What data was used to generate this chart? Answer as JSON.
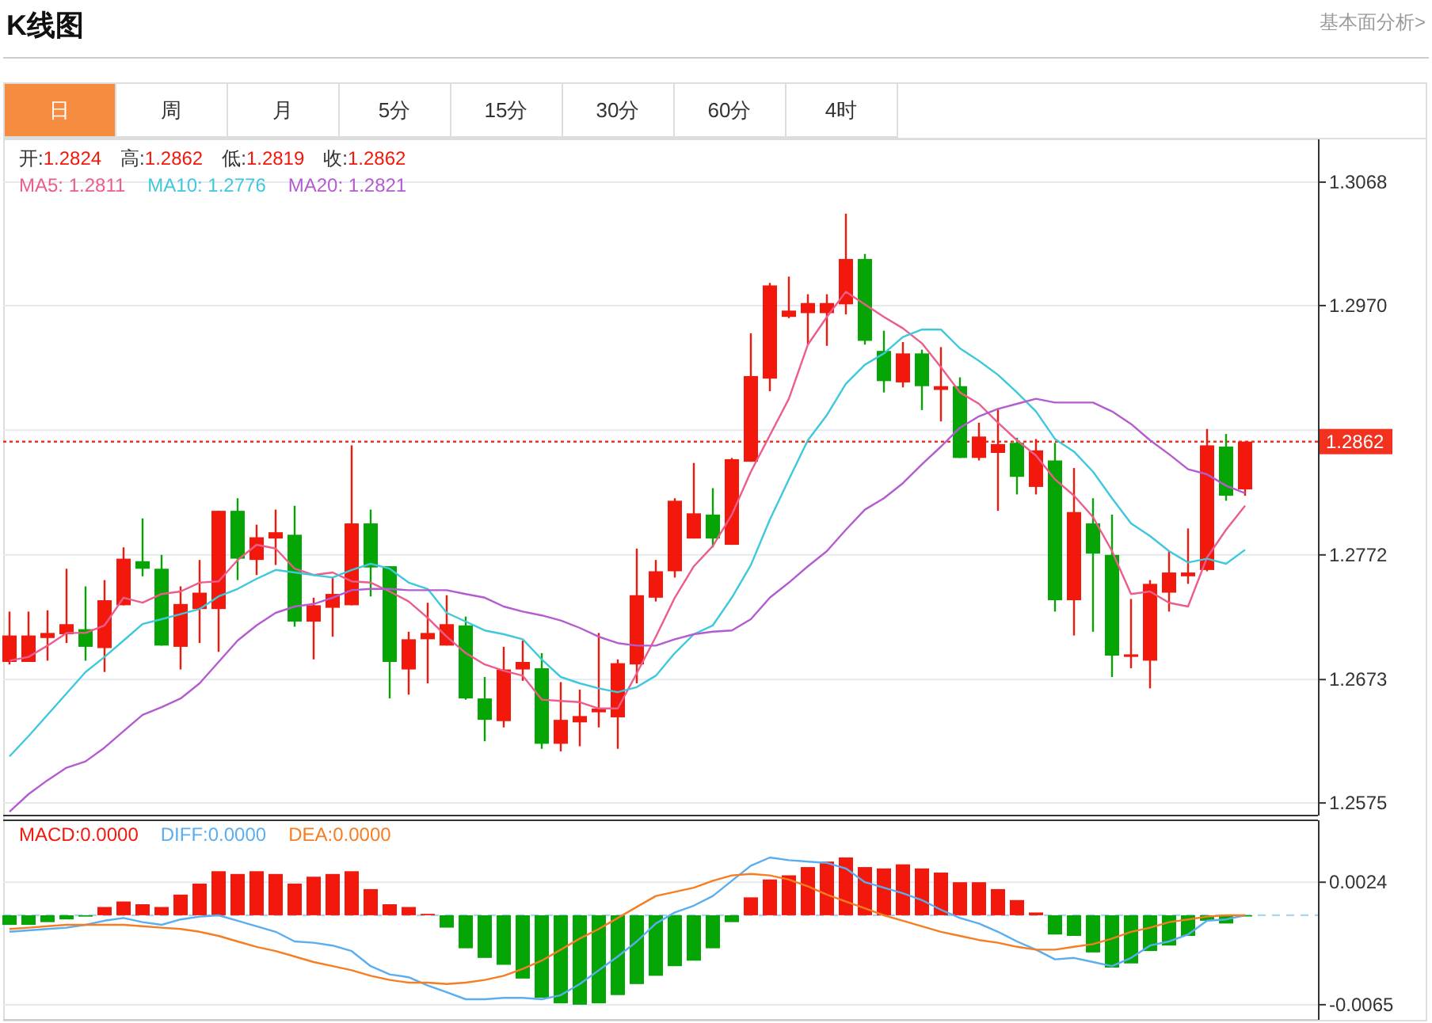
{
  "chart_data": [
    {
      "type": "candlestick",
      "title": "K线图",
      "categories": [
        null,
        null,
        null,
        null,
        null,
        null,
        null,
        null,
        null,
        null,
        null,
        null,
        null,
        null,
        null,
        null,
        null,
        null,
        null,
        null,
        null,
        null,
        null,
        null,
        null,
        null,
        null,
        null,
        null,
        null,
        null,
        null,
        null,
        null,
        null,
        null,
        null,
        null,
        null,
        null,
        null,
        null,
        null,
        null,
        null,
        null,
        null,
        null,
        null,
        null,
        null,
        null,
        null,
        null,
        null,
        null,
        null,
        null,
        null,
        null,
        null,
        null,
        null,
        null,
        null,
        null
      ],
      "ohlc": [
        [
          1.2687,
          1.2727,
          1.2685,
          1.2708
        ],
        [
          1.2687,
          1.2727,
          1.2687,
          1.2708
        ],
        [
          1.2706,
          1.2728,
          1.2688,
          1.271
        ],
        [
          1.2709,
          1.2761,
          1.2702,
          1.2717
        ],
        [
          1.2713,
          1.2747,
          1.2688,
          1.2699
        ],
        [
          1.2698,
          1.2752,
          1.2679,
          1.2736
        ],
        [
          1.2732,
          1.2778,
          1.2732,
          1.2769
        ],
        [
          1.2767,
          1.2801,
          1.2755,
          1.2761
        ],
        [
          1.2761,
          1.2772,
          1.27,
          1.27
        ],
        [
          1.2699,
          1.2747,
          1.2681,
          1.2733
        ],
        [
          1.2729,
          1.2768,
          1.2702,
          1.2742
        ],
        [
          1.2729,
          1.2807,
          1.2695,
          1.2807
        ],
        [
          1.2807,
          1.2817,
          1.2752,
          1.2769
        ],
        [
          1.2768,
          1.2796,
          1.2756,
          1.2786
        ],
        [
          1.2785,
          1.2808,
          1.2764,
          1.279
        ],
        [
          1.2788,
          1.2811,
          1.2715,
          1.2719
        ],
        [
          1.2719,
          1.2738,
          1.2689,
          1.2732
        ],
        [
          1.273,
          1.2754,
          1.2707,
          1.2741
        ],
        [
          1.2732,
          1.2859,
          1.2732,
          1.2797
        ],
        [
          1.2797,
          1.2808,
          1.2739,
          1.2762
        ],
        [
          1.2763,
          1.2763,
          1.2658,
          1.2687
        ],
        [
          1.2681,
          1.2711,
          1.2661,
          1.2705
        ],
        [
          1.2705,
          1.2734,
          1.267,
          1.271
        ],
        [
          1.27,
          1.274,
          1.27,
          1.2717
        ],
        [
          1.2716,
          1.2723,
          1.2657,
          1.2658
        ],
        [
          1.2658,
          1.2675,
          1.2624,
          1.2641
        ],
        [
          1.264,
          1.2699,
          1.2635,
          1.2681
        ],
        [
          1.2681,
          1.2704,
          1.2672,
          1.2687
        ],
        [
          1.2682,
          1.2694,
          1.2618,
          1.2622
        ],
        [
          1.2622,
          1.2671,
          1.2616,
          1.2641
        ],
        [
          1.2639,
          1.2665,
          1.262,
          1.2644
        ],
        [
          1.2647,
          1.271,
          1.2635,
          1.265
        ],
        [
          1.2643,
          1.2689,
          1.2618,
          1.2686
        ],
        [
          1.2685,
          1.2777,
          1.267,
          1.274
        ],
        [
          1.2738,
          1.2768,
          1.2735,
          1.2759
        ],
        [
          1.2759,
          1.2817,
          1.2754,
          1.2815
        ],
        [
          1.2785,
          1.2845,
          1.2785,
          1.2805
        ],
        [
          1.2804,
          1.2825,
          1.2778,
          1.2785
        ],
        [
          1.278,
          1.2849,
          1.278,
          1.2848
        ],
        [
          1.2846,
          1.2948,
          1.2846,
          1.2914
        ],
        [
          1.2912,
          1.2988,
          1.2902,
          1.2986
        ],
        [
          1.2961,
          1.2993,
          1.296,
          1.2966
        ],
        [
          1.2964,
          1.2979,
          1.2939,
          1.2972
        ],
        [
          1.2964,
          1.2979,
          1.2938,
          1.2972
        ],
        [
          1.2971,
          1.3043,
          1.2963,
          1.3007
        ],
        [
          1.3007,
          1.3011,
          1.2939,
          1.2942
        ],
        [
          1.2934,
          1.295,
          1.2901,
          1.291
        ],
        [
          1.2909,
          1.2941,
          1.2905,
          1.2932
        ],
        [
          1.2932,
          1.2935,
          1.2887,
          1.2906
        ],
        [
          1.2903,
          1.2937,
          1.2878,
          1.2906
        ],
        [
          1.2906,
          1.2913,
          1.2849,
          1.2849
        ],
        [
          1.2849,
          1.2877,
          1.2847,
          1.2866
        ],
        [
          1.2853,
          1.2888,
          1.2807,
          1.286
        ],
        [
          1.2861,
          1.2865,
          1.282,
          1.2834
        ],
        [
          1.2826,
          1.2864,
          1.282,
          1.2855
        ],
        [
          1.2847,
          1.2861,
          1.2727,
          1.2736
        ],
        [
          1.2736,
          1.2841,
          1.2708,
          1.2806
        ],
        [
          1.2797,
          1.2817,
          1.2711,
          1.2773
        ],
        [
          1.2772,
          1.2804,
          1.2675,
          1.2692
        ],
        [
          1.2691,
          1.2737,
          1.2682,
          1.2693
        ],
        [
          1.2688,
          1.2752,
          1.2666,
          1.2749
        ],
        [
          1.2742,
          1.2775,
          1.2727,
          1.2758
        ],
        [
          1.2755,
          1.2793,
          1.2749,
          1.2758
        ],
        [
          1.276,
          1.2872,
          1.2759,
          1.2859
        ],
        [
          1.2858,
          1.2868,
          1.2815,
          1.2819
        ],
        [
          1.2824,
          1.2862,
          1.2819,
          1.2862
        ]
      ],
      "series": [
        {
          "name": "MA5: 1.2811",
          "type": "line",
          "color": "#ec5c8c",
          "values": [
            1.2688,
            1.2691,
            1.27,
            1.271,
            1.271,
            1.2716,
            1.2738,
            1.2734,
            1.2741,
            1.2743,
            1.275,
            1.2751,
            1.2768,
            1.278,
            1.2777,
            1.2761,
            1.2756,
            1.2758,
            1.2751,
            1.275,
            1.2743,
            1.2735,
            1.2722,
            1.2707,
            1.2694,
            1.2685,
            1.268,
            1.2676,
            1.2657,
            1.2656,
            1.2655,
            1.265,
            1.265,
            1.2678,
            1.2707,
            1.2738,
            1.2763,
            1.2779,
            1.2804,
            1.2838,
            1.2867,
            1.2896,
            1.2939,
            1.2961,
            1.2981,
            1.2971,
            1.2961,
            1.2952,
            1.294,
            1.2921,
            1.2901,
            1.2892,
            1.2877,
            1.2863,
            1.2851,
            1.2832,
            1.2819,
            1.2802,
            1.2775,
            1.2741,
            1.2743,
            1.2734,
            1.2731,
            1.277,
            1.2792,
            1.2811
          ]
        },
        {
          "name": "MA10: 1.2776",
          "type": "line",
          "color": "#3ec8dc",
          "values": [
            1.2612,
            1.2628,
            1.2645,
            1.2662,
            1.2679,
            1.2691,
            1.2704,
            1.2717,
            1.2721,
            1.2725,
            1.2729,
            1.2739,
            1.2745,
            1.2753,
            1.276,
            1.2758,
            1.2756,
            1.2754,
            1.276,
            1.2765,
            1.2761,
            1.275,
            1.2745,
            1.2726,
            1.2719,
            1.2712,
            1.2709,
            1.2705,
            1.2689,
            1.2675,
            1.267,
            1.2666,
            1.2663,
            1.2667,
            1.2676,
            1.2694,
            1.2709,
            1.2716,
            1.2738,
            1.2764,
            1.28,
            1.2832,
            1.2863,
            1.2883,
            1.2908,
            1.2923,
            1.2932,
            1.2945,
            1.2951,
            1.2951,
            1.2936,
            1.2926,
            1.2915,
            1.2901,
            1.2886,
            1.2864,
            1.2854,
            1.2838,
            1.2817,
            1.2797,
            1.2787,
            1.2775,
            1.2766,
            1.2769,
            1.2765,
            1.2776
          ]
        },
        {
          "name": "MA20: 1.2821",
          "type": "line",
          "color": "#b45ccf",
          "values": [
            1.2568,
            1.2582,
            1.2593,
            1.2603,
            1.2608,
            1.2619,
            1.2632,
            1.2645,
            1.2651,
            1.2658,
            1.267,
            1.2687,
            1.2704,
            1.2716,
            1.2726,
            1.2731,
            1.2733,
            1.2738,
            1.2744,
            1.2745,
            1.2745,
            1.2744,
            1.2744,
            1.2744,
            1.2741,
            1.2738,
            1.2731,
            1.2727,
            1.2724,
            1.272,
            1.2714,
            1.2707,
            1.2702,
            1.27,
            1.27,
            1.2705,
            1.2709,
            1.2711,
            1.2712,
            1.2721,
            1.2738,
            1.275,
            1.2763,
            1.2775,
            1.2792,
            1.2808,
            1.2817,
            1.2829,
            1.2844,
            1.2858,
            1.2873,
            1.2882,
            1.2888,
            1.2892,
            1.2896,
            1.2893,
            1.2893,
            1.2893,
            1.2886,
            1.2876,
            1.2863,
            1.2852,
            1.284,
            1.2836,
            1.2827,
            1.2821
          ]
        }
      ],
      "ylim": [
        1.2565,
        1.3102
      ],
      "yticks": [
        1.2575,
        1.2673,
        1.2772,
        {
          "value": 1.2871,
          "label": null
        },
        {
          "value": 1.297,
          "label": "1.2970"
        },
        1.3068
      ],
      "grid": "y",
      "ref_lines": [
        {
          "axis": "y",
          "value": 1.2862,
          "label": "1.2862",
          "color": "#f2321e",
          "line_style": "dotted"
        }
      ],
      "annotations": [
        "开:1.2824",
        "高:1.2862",
        "低:1.2819",
        "收:1.2862",
        "基本面分析>",
        "日",
        "周",
        "月",
        "5分",
        "15分",
        "30分",
        "60分",
        "4时"
      ]
    },
    {
      "type": "bar",
      "categories": [
        null,
        null,
        null,
        null,
        null,
        null,
        null,
        null,
        null,
        null,
        null,
        null,
        null,
        null,
        null,
        null,
        null,
        null,
        null,
        null,
        null,
        null,
        null,
        null,
        null,
        null,
        null,
        null,
        null,
        null,
        null,
        null,
        null,
        null,
        null,
        null,
        null,
        null,
        null,
        null,
        null,
        null,
        null,
        null,
        null,
        null,
        null,
        null,
        null,
        null,
        null,
        null,
        null,
        null,
        null,
        null,
        null,
        null,
        null,
        null,
        null,
        null,
        null,
        null,
        null,
        null
      ],
      "series": [
        {
          "name": "MACD:0.0000",
          "type": "bar",
          "colors": [
            "#05a505",
            "#05a505",
            "#05a505",
            "#05a505",
            "#05a505",
            "#f2180c",
            "#f2180c",
            "#f2180c",
            "#f2180c",
            "#f2180c",
            "#f2180c",
            "#f2180c",
            "#f2180c",
            "#f2180c",
            "#f2180c",
            "#f2180c",
            "#f2180c",
            "#f2180c",
            "#f2180c",
            "#f2180c",
            "#f2180c",
            "#f2180c",
            "#f2180c",
            "#05a505",
            "#05a505",
            "#05a505",
            "#05a505",
            "#05a505",
            "#05a505",
            "#05a505",
            "#05a505",
            "#05a505",
            "#05a505",
            "#05a505",
            "#05a505",
            "#05a505",
            "#05a505",
            "#05a505",
            "#05a505",
            "#f2180c",
            "#f2180c",
            "#f2180c",
            "#f2180c",
            "#f2180c",
            "#f2180c",
            "#f2180c",
            "#f2180c",
            "#f2180c",
            "#f2180c",
            "#f2180c",
            "#f2180c",
            "#f2180c",
            "#f2180c",
            "#f2180c",
            "#f2180c",
            "#05a505",
            "#05a505",
            "#05a505",
            "#05a505",
            "#05a505",
            "#05a505",
            "#05a505",
            "#05a505",
            "#05a505",
            "#05a505",
            "#05a505"
          ],
          "values": [
            -0.0007,
            -0.0007,
            -0.0005,
            -0.0003,
            -0.0001,
            0.0006,
            0.001,
            0.0008,
            0.0006,
            0.0015,
            0.0023,
            0.0032,
            0.003,
            0.0032,
            0.003,
            0.0023,
            0.0028,
            0.003,
            0.0032,
            0.0019,
            0.0008,
            0.0006,
            0.0001,
            -0.0009,
            -0.0024,
            -0.0031,
            -0.0036,
            -0.0046,
            -0.006,
            -0.0064,
            -0.0065,
            -0.0064,
            -0.0058,
            -0.005,
            -0.0044,
            -0.0037,
            -0.0033,
            -0.0024,
            -0.0005,
            0.0013,
            0.0026,
            0.0029,
            0.0035,
            0.0039,
            0.0042,
            0.0035,
            0.0034,
            0.0037,
            0.0034,
            0.0031,
            0.0024,
            0.0024,
            0.0019,
            0.0011,
            0.0002,
            -0.0014,
            -0.0015,
            -0.0027,
            -0.0038,
            -0.0035,
            -0.0026,
            -0.0022,
            -0.0015,
            -0.0004,
            -0.0006,
            0
          ]
        },
        {
          "name": "DIFF:0.0000",
          "type": "line",
          "color": "#5aaef0",
          "values": [
            -0.0012,
            -0.0011,
            -0.001,
            -0.0009,
            -0.0007,
            -0.0004,
            -0.0002,
            -0.0005,
            -0.0007,
            -0.0003,
            -0.0001,
            0,
            -0.0004,
            -0.0008,
            -0.0012,
            -0.0019,
            -0.002,
            -0.0022,
            -0.0026,
            -0.0037,
            -0.0043,
            -0.0045,
            -0.0051,
            -0.0056,
            -0.0061,
            -0.0061,
            -0.006,
            -0.006,
            -0.0061,
            -0.0058,
            -0.005,
            -0.004,
            -0.003,
            -0.0019,
            -0.0006,
            0.0002,
            0.0007,
            0.0014,
            0.0025,
            0.0036,
            0.0042,
            0.004,
            0.0039,
            0.0038,
            0.0034,
            0.0024,
            0.002,
            0.0016,
            0.0011,
            0.0004,
            -0.0002,
            -0.0006,
            -0.0012,
            -0.0019,
            -0.0025,
            -0.0032,
            -0.0031,
            -0.0034,
            -0.0037,
            -0.0031,
            -0.0022,
            -0.0019,
            -0.0014,
            -0.0004,
            -0.0003,
            0
          ]
        },
        {
          "name": "DEA:0.0000",
          "type": "line",
          "color": "#f57d22",
          "values": [
            -0.001,
            -0.0009,
            -0.0008,
            -0.0007,
            -0.0007,
            -0.0007,
            -0.0007,
            -0.0008,
            -0.0009,
            -0.001,
            -0.0012,
            -0.0015,
            -0.0019,
            -0.0023,
            -0.0026,
            -0.003,
            -0.0034,
            -0.0037,
            -0.004,
            -0.0044,
            -0.0047,
            -0.0049,
            -0.0049,
            -0.005,
            -0.0049,
            -0.0047,
            -0.0044,
            -0.0039,
            -0.0033,
            -0.0025,
            -0.0017,
            -0.001,
            -0.0002,
            0.0006,
            0.0014,
            0.0017,
            0.002,
            0.0025,
            0.0029,
            0.003,
            0.0029,
            0.0026,
            0.0021,
            0.0015,
            0.001,
            0.0005,
            0,
            -0.0004,
            -0.0008,
            -0.0012,
            -0.0015,
            -0.0018,
            -0.002,
            -0.0023,
            -0.0025,
            -0.0025,
            -0.0023,
            -0.0021,
            -0.0017,
            -0.0012,
            -0.0009,
            -0.0005,
            -0.0003,
            -0.0001,
            0,
            0
          ]
        }
      ],
      "ylim": [
        -0.0076,
        0.0069
      ],
      "yticks": [
        0.0024,
        -0.0065
      ],
      "grid": "y",
      "ref_lines": [
        {
          "axis": "y",
          "value": 0,
          "color": "#a8d4f0",
          "line_style": "dashed"
        }
      ]
    }
  ]
}
